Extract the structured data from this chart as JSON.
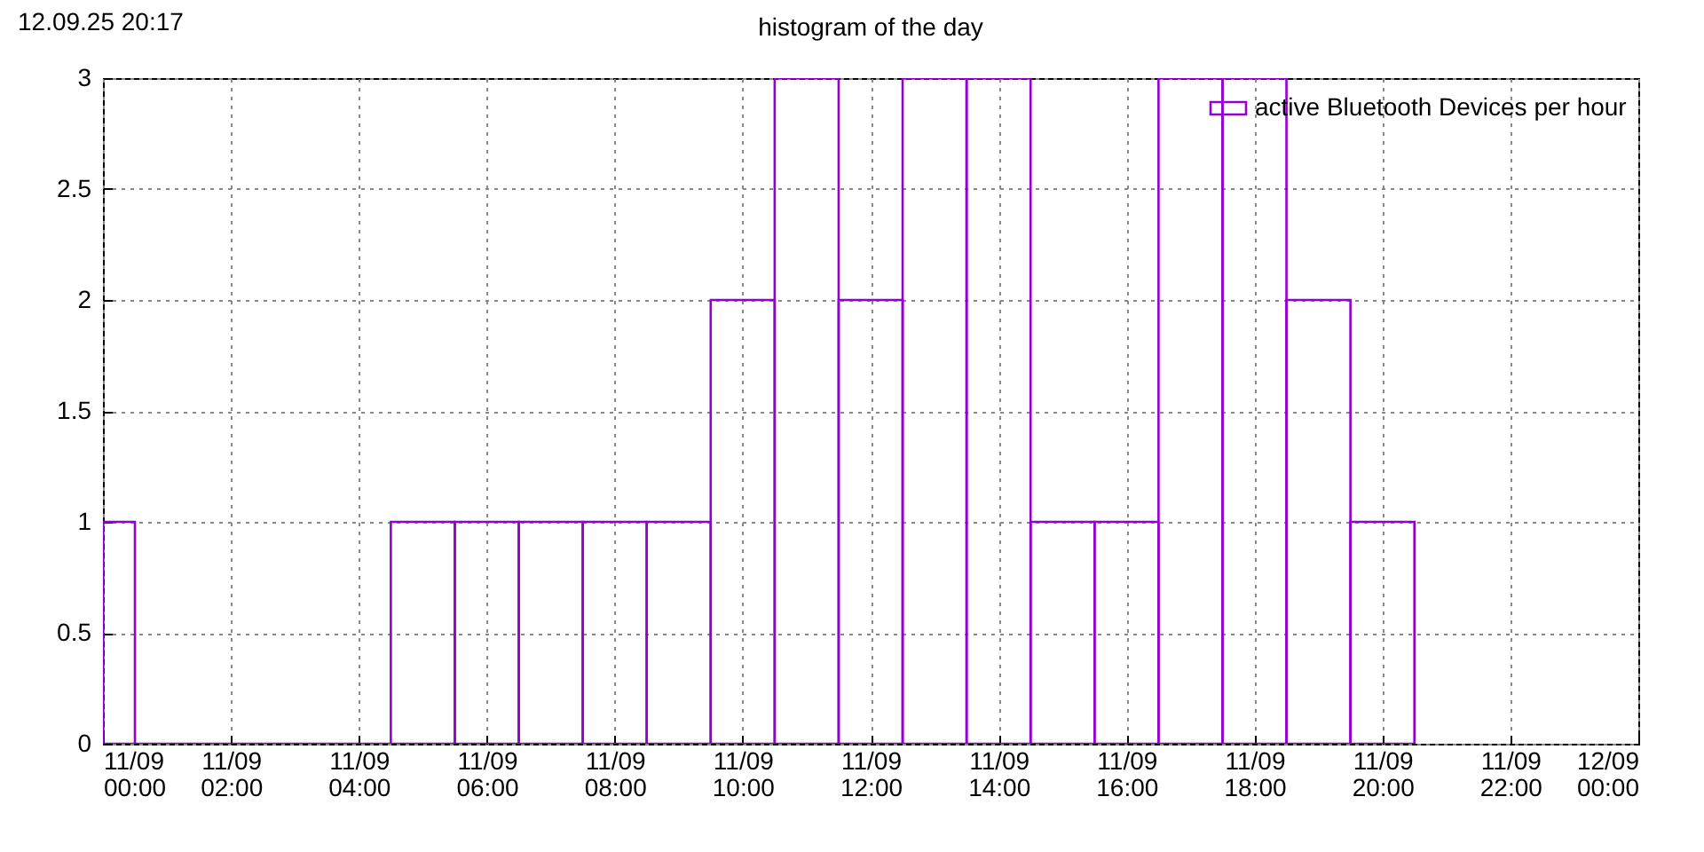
{
  "chart_data": {
    "type": "histogram",
    "title": "histogram of the day",
    "annotations": [
      "12.09.25 20:17"
    ],
    "bins": [
      "--09-11T00:00",
      "--09-11T00:30",
      "--09-11T01:30",
      "--09-11T02:30",
      "--09-11T03:30",
      "--09-11T04:30",
      "--09-11T05:30",
      "--09-11T06:30",
      "--09-11T07:30",
      "--09-11T08:30",
      "--09-11T09:30",
      "--09-11T10:30",
      "--09-11T11:30",
      "--09-11T12:30",
      "--09-11T13:30",
      "--09-11T14:30",
      "--09-11T15:30",
      "--09-11T16:30",
      "--09-11T17:30",
      "--09-11T18:30",
      "--09-11T19:30",
      "--09-11T20:30"
    ],
    "series": [
      {
        "name": "active Bluetooth Devices per hour",
        "color": "#9400d3",
        "values": [
          1,
          0,
          0,
          0,
          0,
          1,
          1,
          1,
          1,
          1,
          2,
          3,
          2,
          3,
          3,
          1,
          1,
          3,
          3,
          2,
          1
        ]
      }
    ],
    "xlim": [
      "--09-11T00:00",
      "--09-12T00:00"
    ],
    "xticks": [
      {
        "value": "--09-11T00:00",
        "label": "11/09\n00:00"
      },
      {
        "value": "--09-11T02:00",
        "label": "11/09\n02:00"
      },
      {
        "value": "--09-11T04:00",
        "label": "11/09\n04:00"
      },
      {
        "value": "--09-11T06:00",
        "label": "11/09\n06:00"
      },
      {
        "value": "--09-11T08:00",
        "label": "11/09\n08:00"
      },
      {
        "value": "--09-11T10:00",
        "label": "11/09\n10:00"
      },
      {
        "value": "--09-11T12:00",
        "label": "11/09\n12:00"
      },
      {
        "value": "--09-11T14:00",
        "label": "11/09\n14:00"
      },
      {
        "value": "--09-11T16:00",
        "label": "11/09\n16:00"
      },
      {
        "value": "--09-11T18:00",
        "label": "11/09\n18:00"
      },
      {
        "value": "--09-11T20:00",
        "label": "11/09\n20:00"
      },
      {
        "value": "--09-11T22:00",
        "label": "11/09\n22:00"
      },
      {
        "value": "--09-12T00:00",
        "label": "12/09\n00:00"
      }
    ],
    "ylim": [
      0,
      3
    ],
    "yticks": [
      0,
      0.5,
      1,
      1.5,
      2,
      2.5,
      3
    ],
    "grid": true,
    "legend": "top right"
  }
}
